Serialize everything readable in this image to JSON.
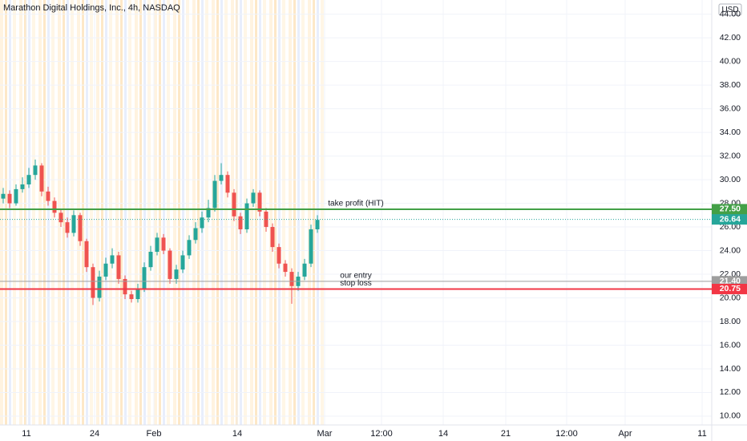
{
  "chart_data": {
    "type": "candlestick",
    "title": "Marathon Digital Holdings, Inc., 4h, NASDAQ",
    "currency": "USD",
    "up_color": "#26a69a",
    "down_color": "#ef5350",
    "x": [
      1,
      3,
      5,
      7,
      9,
      11,
      13,
      15,
      17,
      19,
      21,
      23,
      25,
      27,
      29,
      31,
      33,
      35,
      37,
      39,
      41,
      43,
      45,
      47,
      49,
      51,
      53,
      55,
      57,
      59,
      61,
      63,
      65,
      67,
      69,
      71,
      73,
      75,
      77,
      79,
      81,
      83,
      85,
      87,
      89,
      91,
      93,
      95,
      97,
      99
    ],
    "open": [
      28.4,
      28.8,
      28.0,
      29.2,
      29.6,
      30.4,
      31.2,
      29.0,
      28.2,
      27.2,
      26.4,
      25.5,
      27.0,
      24.8,
      22.6,
      20.0,
      21.8,
      22.9,
      23.6,
      21.6,
      20.3,
      19.9,
      20.8,
      22.6,
      23.9,
      25.1,
      24.0,
      21.6,
      22.4,
      23.6,
      24.9,
      25.9,
      26.8,
      27.6,
      29.9,
      30.4,
      28.9,
      26.9,
      25.8,
      28.0,
      28.9,
      27.3,
      26.0,
      24.3,
      22.9,
      22.2,
      21.0,
      21.8,
      22.9,
      25.8
    ],
    "high": [
      29.3,
      29.1,
      29.6,
      30.2,
      31.0,
      31.7,
      31.4,
      29.4,
      28.5,
      27.5,
      26.8,
      27.4,
      27.2,
      25.0,
      22.9,
      22.3,
      23.4,
      24.2,
      23.9,
      21.9,
      20.6,
      21.2,
      23.0,
      24.4,
      25.5,
      25.4,
      24.2,
      22.8,
      24.0,
      25.3,
      26.4,
      27.3,
      28.3,
      30.4,
      31.4,
      30.7,
      29.2,
      27.2,
      28.4,
      29.2,
      29.1,
      27.6,
      26.3,
      24.6,
      23.2,
      22.5,
      22.2,
      23.3,
      26.2,
      27.0
    ],
    "low": [
      28.0,
      27.6,
      27.8,
      28.9,
      29.3,
      30.0,
      28.6,
      27.8,
      26.8,
      26.0,
      25.1,
      25.2,
      24.4,
      22.2,
      19.4,
      19.7,
      21.5,
      22.5,
      21.2,
      19.9,
      19.6,
      19.6,
      20.5,
      22.3,
      23.6,
      23.7,
      21.2,
      21.2,
      22.1,
      23.3,
      24.6,
      25.5,
      26.4,
      27.3,
      29.6,
      28.5,
      26.5,
      25.4,
      25.5,
      27.7,
      26.9,
      25.6,
      23.9,
      22.5,
      21.8,
      19.5,
      20.6,
      21.5,
      22.6,
      25.5
    ],
    "close": [
      28.8,
      28.0,
      29.2,
      29.6,
      30.4,
      31.2,
      29.0,
      28.2,
      27.2,
      26.4,
      25.5,
      27.0,
      24.8,
      22.6,
      20.0,
      21.8,
      22.9,
      23.6,
      21.6,
      20.3,
      19.9,
      20.8,
      22.6,
      23.9,
      25.1,
      24.0,
      21.6,
      22.4,
      23.6,
      24.9,
      25.9,
      26.8,
      27.6,
      29.9,
      30.4,
      28.9,
      26.9,
      25.8,
      28.0,
      28.9,
      27.3,
      26.0,
      24.3,
      22.9,
      22.2,
      21.0,
      21.8,
      22.9,
      25.8,
      26.6
    ],
    "levels": [
      {
        "name": "take profit (HIT)",
        "value": 27.5,
        "label": "27.50",
        "color": "#43a047"
      },
      {
        "name": "our entry",
        "value": 21.4,
        "label": "21.40",
        "color": "#9e9e9e"
      },
      {
        "name": "stop loss",
        "value": 20.75,
        "label": "20.75",
        "color": "#f23645"
      }
    ],
    "last_price": {
      "value": 26.64,
      "label": "26.64",
      "color": "#26a69a"
    },
    "xlim": [
      0,
      222
    ],
    "xticks": [
      {
        "value": 8.25,
        "label": "11"
      },
      {
        "value": 29.5,
        "label": "24"
      },
      {
        "value": 48,
        "label": "Feb"
      },
      {
        "value": 74,
        "label": "14"
      },
      {
        "value": 101.25,
        "label": "Mar"
      },
      {
        "value": 119,
        "label": "12:00"
      },
      {
        "value": 138.25,
        "label": "14"
      },
      {
        "value": 157.75,
        "label": "21"
      },
      {
        "value": 176.75,
        "label": "12:00"
      },
      {
        "value": 195,
        "label": "Apr"
      },
      {
        "value": 219,
        "label": "11"
      }
    ],
    "ylim": [
      9.25,
      45.2
    ],
    "yticks": [
      {
        "value": 10,
        "label": "10.00"
      },
      {
        "value": 12,
        "label": "12.00"
      },
      {
        "value": 14,
        "label": "14.00"
      },
      {
        "value": 16,
        "label": "16.00"
      },
      {
        "value": 18,
        "label": "18.00"
      },
      {
        "value": 20,
        "label": "20.00"
      },
      {
        "value": 22,
        "label": "22.00"
      },
      {
        "value": 24,
        "label": "24.00"
      },
      {
        "value": 26,
        "label": "26.00"
      },
      {
        "value": 28,
        "label": "28.00"
      },
      {
        "value": 30,
        "label": "30.00"
      },
      {
        "value": 32,
        "label": "32.00"
      },
      {
        "value": 34,
        "label": "34.00"
      },
      {
        "value": 36,
        "label": "36.00"
      },
      {
        "value": 38,
        "label": "38.00"
      },
      {
        "value": 40,
        "label": "40.00"
      },
      {
        "value": 42,
        "label": "42.00"
      },
      {
        "value": 44,
        "label": "44.00"
      }
    ],
    "grid": true
  }
}
